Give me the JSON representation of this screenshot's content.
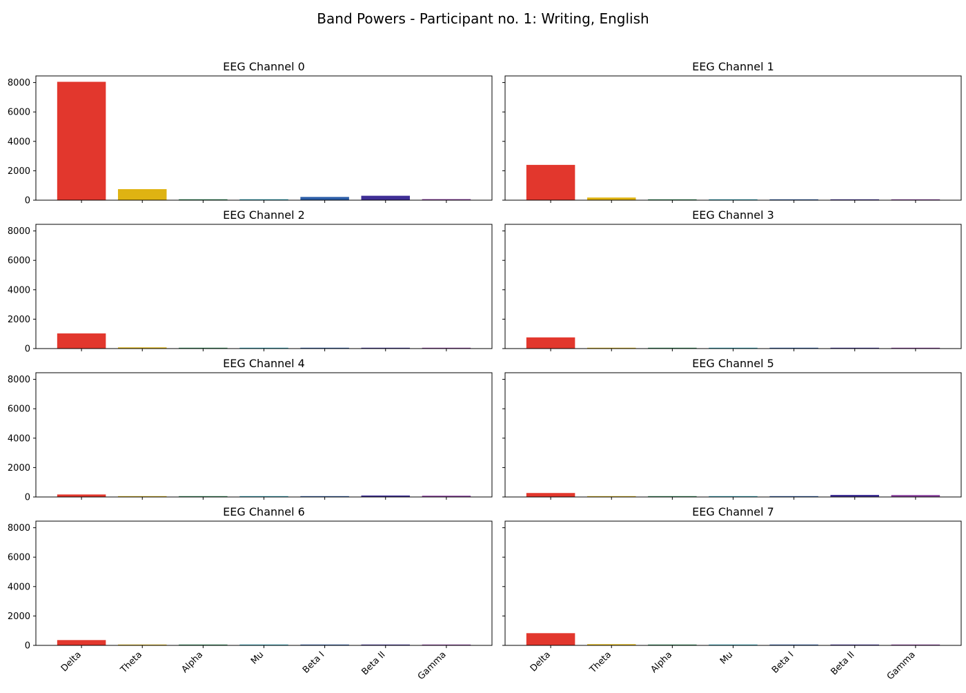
{
  "figure": {
    "title": "Band Powers - Participant no. 1: Writing, English"
  },
  "chart_data": {
    "type": "bar",
    "categories": [
      "Delta",
      "Theta",
      "Alpha",
      "Mu",
      "Beta I",
      "Beta II",
      "Gamma"
    ],
    "colors": [
      "#e2372d",
      "#dfb312",
      "#2e8b57",
      "#2aa3b8",
      "#2d5ea8",
      "#3f2f96",
      "#8a3f9e"
    ],
    "ylim": [
      0,
      8450
    ],
    "yticks": [
      0,
      2000,
      4000,
      6000,
      8000
    ],
    "grid": false,
    "subplots": [
      {
        "title": "EEG Channel 0",
        "values": [
          8050,
          750,
          60,
          60,
          220,
          300,
          70
        ]
      },
      {
        "title": "EEG Channel 1",
        "values": [
          2400,
          180,
          25,
          25,
          30,
          35,
          20
        ]
      },
      {
        "title": "EEG Channel 2",
        "values": [
          1030,
          80,
          20,
          20,
          25,
          30,
          20
        ]
      },
      {
        "title": "EEG Channel 3",
        "values": [
          760,
          40,
          15,
          15,
          20,
          20,
          15
        ]
      },
      {
        "title": "EEG Channel 4",
        "values": [
          170,
          30,
          25,
          25,
          30,
          100,
          85
        ]
      },
      {
        "title": "EEG Channel 5",
        "values": [
          270,
          40,
          20,
          20,
          30,
          140,
          130
        ]
      },
      {
        "title": "EEG Channel 6",
        "values": [
          360,
          30,
          20,
          20,
          20,
          30,
          20
        ]
      },
      {
        "title": "EEG Channel 7",
        "values": [
          830,
          80,
          20,
          20,
          20,
          20,
          15
        ]
      }
    ]
  }
}
